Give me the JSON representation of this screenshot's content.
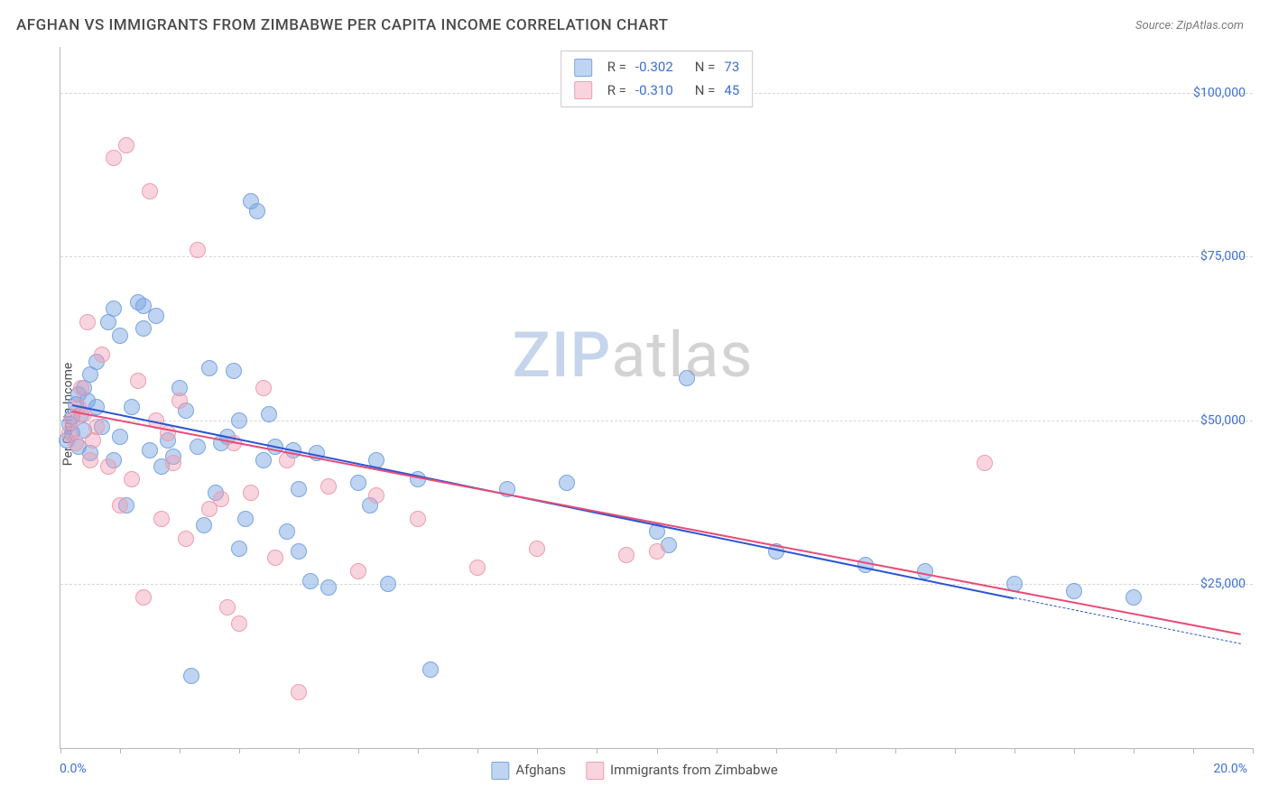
{
  "title": "AFGHAN VS IMMIGRANTS FROM ZIMBABWE PER CAPITA INCOME CORRELATION CHART",
  "source_label": "Source: ZipAtlas.com",
  "ylabel": "Per Capita Income",
  "watermark_a": "ZIP",
  "watermark_b": "atlas",
  "chart": {
    "type": "scatter",
    "xlim": [
      0,
      20
    ],
    "ylim": [
      0,
      107000
    ],
    "xtick_labels": [
      "0.0%",
      "20.0%"
    ],
    "ytick_positions": [
      25000,
      50000,
      75000,
      100000
    ],
    "ytick_labels": [
      "$25,000",
      "$50,000",
      "$75,000",
      "$100,000"
    ],
    "grid_color": "#d6d6d6",
    "label_color": "#3b6fd6",
    "xtick_minor_count": 20,
    "series": [
      {
        "name": "Afghans",
        "fill": "rgba(122,165,225,0.48)",
        "stroke": "#7aa5e1",
        "R": "-0.302",
        "N": "73",
        "reg_color": "#2b55d4",
        "reg_start": [
          0.2,
          52500
        ],
        "reg_end": [
          16.0,
          23000
        ],
        "dash_start": [
          16.0,
          23000
        ],
        "dash_end": [
          19.8,
          16000
        ],
        "points": [
          [
            0.1,
            47000
          ],
          [
            0.15,
            49500
          ],
          [
            0.2,
            50500
          ],
          [
            0.2,
            48000
          ],
          [
            0.25,
            52500
          ],
          [
            0.3,
            46000
          ],
          [
            0.3,
            54000
          ],
          [
            0.35,
            51000
          ],
          [
            0.4,
            55000
          ],
          [
            0.4,
            48500
          ],
          [
            0.45,
            53000
          ],
          [
            0.5,
            45000
          ],
          [
            0.5,
            57000
          ],
          [
            0.6,
            52000
          ],
          [
            0.6,
            59000
          ],
          [
            0.7,
            49000
          ],
          [
            0.8,
            65000
          ],
          [
            0.9,
            44000
          ],
          [
            0.9,
            67000
          ],
          [
            1.0,
            47500
          ],
          [
            1.0,
            63000
          ],
          [
            1.1,
            37000
          ],
          [
            1.2,
            52000
          ],
          [
            1.3,
            68000
          ],
          [
            1.4,
            64000
          ],
          [
            1.4,
            67500
          ],
          [
            1.5,
            45500
          ],
          [
            1.6,
            66000
          ],
          [
            1.7,
            43000
          ],
          [
            1.8,
            47000
          ],
          [
            1.9,
            44500
          ],
          [
            2.0,
            55000
          ],
          [
            2.1,
            51500
          ],
          [
            2.2,
            11000
          ],
          [
            2.3,
            46000
          ],
          [
            2.4,
            34000
          ],
          [
            2.5,
            58000
          ],
          [
            2.6,
            39000
          ],
          [
            2.7,
            46500
          ],
          [
            2.8,
            47500
          ],
          [
            2.9,
            57500
          ],
          [
            3.0,
            30500
          ],
          [
            3.0,
            50000
          ],
          [
            3.1,
            35000
          ],
          [
            3.2,
            83500
          ],
          [
            3.3,
            82000
          ],
          [
            3.4,
            44000
          ],
          [
            3.5,
            51000
          ],
          [
            3.6,
            46000
          ],
          [
            3.8,
            33000
          ],
          [
            3.9,
            45500
          ],
          [
            4.0,
            39500
          ],
          [
            4.0,
            30000
          ],
          [
            4.2,
            25500
          ],
          [
            4.3,
            45000
          ],
          [
            4.5,
            24500
          ],
          [
            5.0,
            40500
          ],
          [
            5.2,
            37000
          ],
          [
            5.3,
            44000
          ],
          [
            5.5,
            25000
          ],
          [
            6.0,
            41000
          ],
          [
            6.2,
            12000
          ],
          [
            7.5,
            39500
          ],
          [
            8.5,
            40500
          ],
          [
            10.0,
            33000
          ],
          [
            10.2,
            31000
          ],
          [
            10.5,
            56500
          ],
          [
            12.0,
            30000
          ],
          [
            13.5,
            28000
          ],
          [
            14.5,
            27000
          ],
          [
            16.0,
            25000
          ],
          [
            17.0,
            24000
          ],
          [
            18.0,
            23000
          ]
        ]
      },
      {
        "name": "Immigrants from Zimbabwe",
        "fill": "rgba(239,156,176,0.42)",
        "stroke": "#ef9cb0",
        "R": "-0.310",
        "N": "45",
        "reg_color": "#e94b77",
        "reg_start": [
          0.2,
          51500
        ],
        "reg_end": [
          19.8,
          17500
        ],
        "points": [
          [
            0.15,
            48000
          ],
          [
            0.2,
            50000
          ],
          [
            0.25,
            46500
          ],
          [
            0.3,
            52000
          ],
          [
            0.35,
            55000
          ],
          [
            0.4,
            51000
          ],
          [
            0.45,
            65000
          ],
          [
            0.5,
            44000
          ],
          [
            0.55,
            47000
          ],
          [
            0.6,
            49000
          ],
          [
            0.7,
            60000
          ],
          [
            0.8,
            43000
          ],
          [
            0.9,
            90000
          ],
          [
            1.0,
            37000
          ],
          [
            1.1,
            92000
          ],
          [
            1.2,
            41000
          ],
          [
            1.3,
            56000
          ],
          [
            1.4,
            23000
          ],
          [
            1.5,
            85000
          ],
          [
            1.6,
            50000
          ],
          [
            1.7,
            35000
          ],
          [
            1.8,
            48000
          ],
          [
            1.9,
            43500
          ],
          [
            2.0,
            53000
          ],
          [
            2.1,
            32000
          ],
          [
            2.3,
            76000
          ],
          [
            2.5,
            36500
          ],
          [
            2.7,
            38000
          ],
          [
            2.8,
            21500
          ],
          [
            2.9,
            46500
          ],
          [
            3.0,
            19000
          ],
          [
            3.2,
            39000
          ],
          [
            3.4,
            55000
          ],
          [
            3.6,
            29000
          ],
          [
            3.8,
            44000
          ],
          [
            4.0,
            8500
          ],
          [
            4.5,
            40000
          ],
          [
            5.0,
            27000
          ],
          [
            5.3,
            38500
          ],
          [
            6.0,
            35000
          ],
          [
            7.0,
            27500
          ],
          [
            8.0,
            30500
          ],
          [
            9.5,
            29500
          ],
          [
            10.0,
            30000
          ],
          [
            15.5,
            43500
          ]
        ]
      }
    ],
    "bottom_legend_labels": [
      "Afghans",
      "Immigrants from Zimbabwe"
    ]
  }
}
